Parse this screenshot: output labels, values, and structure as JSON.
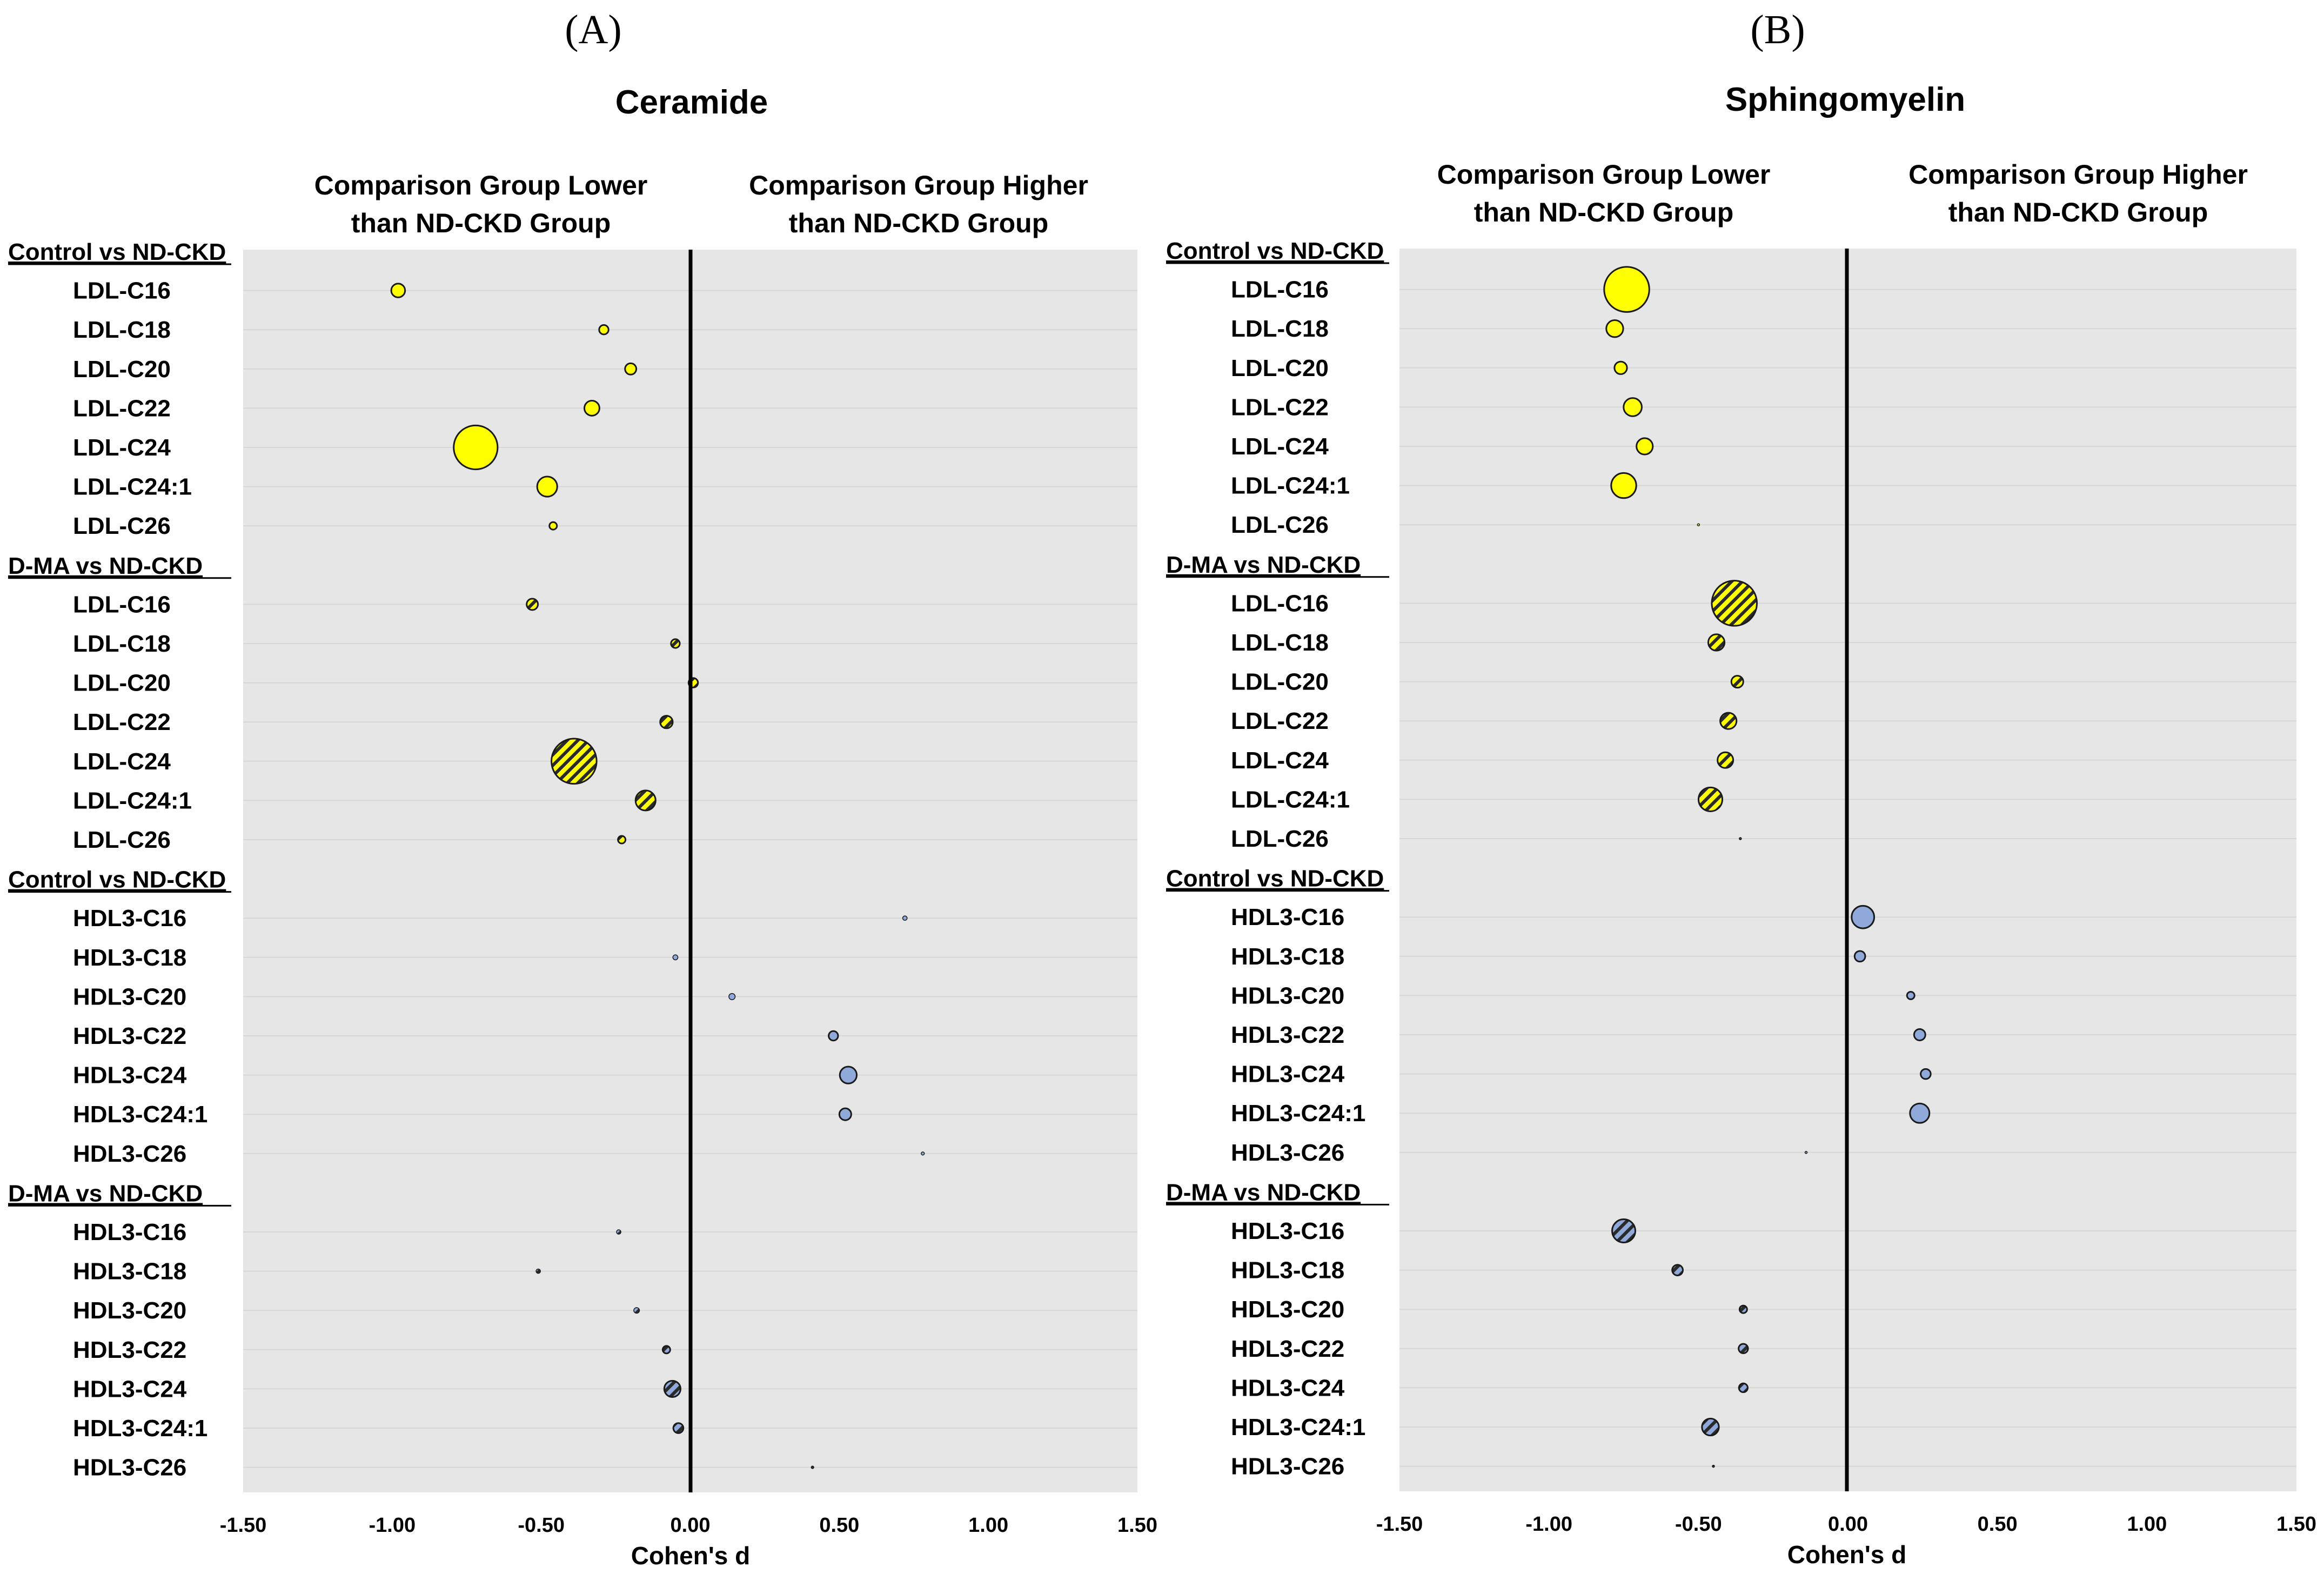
{
  "colors": {
    "plot_background": "#e6e6e6",
    "ldl_fill": "#ffff00",
    "hdl_fill": "#8fa9db",
    "bubble_stroke": "#1a1a1a",
    "zero_line": "#000000"
  },
  "chart_data": [
    {
      "type": "scatter",
      "panel_label": "(A)",
      "title": "Ceramide",
      "left_direction_label": [
        "Comparison Group Lower",
        "than ND-CKD Group"
      ],
      "right_direction_label": [
        "Comparison Group Higher",
        "than ND-CKD Group"
      ],
      "xlabel": "Cohen's d",
      "xlim": [
        -1.5,
        1.5
      ],
      "xticks": [
        "-1.50",
        "-1.00",
        "-0.50",
        "0.00",
        "0.50",
        "1.00",
        "1.50"
      ],
      "groups": [
        {
          "label": "Control vs ND-CKD",
          "fill": "ldl",
          "hatched": false,
          "rows": [
            {
              "label": "LDL-C16",
              "d": -0.98,
              "size": 0.22
            },
            {
              "label": "LDL-C18",
              "d": -0.29,
              "size": 0.15
            },
            {
              "label": "LDL-C20",
              "d": -0.2,
              "size": 0.18
            },
            {
              "label": "LDL-C22",
              "d": -0.33,
              "size": 0.24
            },
            {
              "label": "LDL-C24",
              "d": -0.72,
              "size": 0.7
            },
            {
              "label": "LDL-C24:1",
              "d": -0.48,
              "size": 0.32
            },
            {
              "label": "LDL-C26",
              "d": -0.46,
              "size": 0.12
            }
          ]
        },
        {
          "label": "D-MA vs ND-CKD",
          "fill": "ldl",
          "hatched": true,
          "rows": [
            {
              "label": "LDL-C16",
              "d": -0.53,
              "size": 0.18
            },
            {
              "label": "LDL-C18",
              "d": -0.05,
              "size": 0.14
            },
            {
              "label": "LDL-C20",
              "d": 0.01,
              "size": 0.15
            },
            {
              "label": "LDL-C22",
              "d": -0.08,
              "size": 0.2
            },
            {
              "label": "LDL-C24",
              "d": -0.39,
              "size": 0.72
            },
            {
              "label": "LDL-C24:1",
              "d": -0.15,
              "size": 0.32
            },
            {
              "label": "LDL-C26",
              "d": -0.23,
              "size": 0.12
            }
          ]
        },
        {
          "label": "Control vs ND-CKD",
          "fill": "hdl",
          "hatched": false,
          "rows": [
            {
              "label": "HDL3-C16",
              "d": 0.72,
              "size": 0.07
            },
            {
              "label": "HDL3-C18",
              "d": -0.05,
              "size": 0.08
            },
            {
              "label": "HDL3-C20",
              "d": 0.14,
              "size": 0.1
            },
            {
              "label": "HDL3-C22",
              "d": 0.48,
              "size": 0.15
            },
            {
              "label": "HDL3-C24",
              "d": 0.53,
              "size": 0.27
            },
            {
              "label": "HDL3-C24:1",
              "d": 0.52,
              "size": 0.19
            },
            {
              "label": "HDL3-C26",
              "d": 0.78,
              "size": 0.05
            }
          ]
        },
        {
          "label": "D-MA vs ND-CKD",
          "fill": "hdl",
          "hatched": true,
          "rows": [
            {
              "label": "HDL3-C16",
              "d": -0.24,
              "size": 0.07
            },
            {
              "label": "HDL3-C18",
              "d": -0.51,
              "size": 0.07
            },
            {
              "label": "HDL3-C20",
              "d": -0.18,
              "size": 0.09
            },
            {
              "label": "HDL3-C22",
              "d": -0.08,
              "size": 0.12
            },
            {
              "label": "HDL3-C24",
              "d": -0.06,
              "size": 0.26
            },
            {
              "label": "HDL3-C24:1",
              "d": -0.04,
              "size": 0.16
            },
            {
              "label": "HDL3-C26",
              "d": 0.41,
              "size": 0.04
            }
          ]
        }
      ]
    },
    {
      "type": "scatter",
      "panel_label": "(B)",
      "title": "Sphingomyelin",
      "left_direction_label": [
        "Comparison Group Lower",
        "than ND-CKD Group"
      ],
      "right_direction_label": [
        "Comparison Group Higher",
        "than ND-CKD Group"
      ],
      "xlabel": "Cohen's d",
      "xlim": [
        -1.5,
        1.5
      ],
      "xticks": [
        "-1.50",
        "-1.00",
        "-0.50",
        "0.00",
        "0.50",
        "1.00",
        "1.50"
      ],
      "groups": [
        {
          "label": "Control vs ND-CKD",
          "fill": "ldl",
          "hatched": false,
          "rows": [
            {
              "label": "LDL-C16",
              "d": -0.74,
              "size": 0.72
            },
            {
              "label": "LDL-C18",
              "d": -0.78,
              "size": 0.27
            },
            {
              "label": "LDL-C20",
              "d": -0.76,
              "size": 0.2
            },
            {
              "label": "LDL-C22",
              "d": -0.72,
              "size": 0.29
            },
            {
              "label": "LDL-C24",
              "d": -0.68,
              "size": 0.26
            },
            {
              "label": "LDL-C24:1",
              "d": -0.75,
              "size": 0.4
            },
            {
              "label": "LDL-C26",
              "d": -0.5,
              "size": 0.02
            }
          ]
        },
        {
          "label": "D-MA vs ND-CKD",
          "fill": "ldl",
          "hatched": true,
          "rows": [
            {
              "label": "LDL-C16",
              "d": -0.38,
              "size": 0.72
            },
            {
              "label": "LDL-C18",
              "d": -0.44,
              "size": 0.26
            },
            {
              "label": "LDL-C20",
              "d": -0.37,
              "size": 0.19
            },
            {
              "label": "LDL-C22",
              "d": -0.4,
              "size": 0.26
            },
            {
              "label": "LDL-C24",
              "d": -0.41,
              "size": 0.25
            },
            {
              "label": "LDL-C24:1",
              "d": -0.46,
              "size": 0.38
            },
            {
              "label": "LDL-C26",
              "d": -0.36,
              "size": 0.02
            }
          ]
        },
        {
          "label": "Control vs ND-CKD",
          "fill": "hdl",
          "hatched": false,
          "rows": [
            {
              "label": "HDL3-C16",
              "d": 0.05,
              "size": 0.36
            },
            {
              "label": "HDL3-C18",
              "d": 0.04,
              "size": 0.17
            },
            {
              "label": "HDL3-C20",
              "d": 0.21,
              "size": 0.12
            },
            {
              "label": "HDL3-C22",
              "d": 0.24,
              "size": 0.18
            },
            {
              "label": "HDL3-C24",
              "d": 0.26,
              "size": 0.16
            },
            {
              "label": "HDL3-C24:1",
              "d": 0.24,
              "size": 0.31
            },
            {
              "label": "HDL3-C26",
              "d": -0.14,
              "size": 0.02
            }
          ]
        },
        {
          "label": "D-MA vs ND-CKD",
          "fill": "hdl",
          "hatched": true,
          "rows": [
            {
              "label": "HDL3-C16",
              "d": -0.75,
              "size": 0.37
            },
            {
              "label": "HDL3-C18",
              "d": -0.57,
              "size": 0.17
            },
            {
              "label": "HDL3-C20",
              "d": -0.35,
              "size": 0.12
            },
            {
              "label": "HDL3-C22",
              "d": -0.35,
              "size": 0.15
            },
            {
              "label": "HDL3-C24",
              "d": -0.35,
              "size": 0.14
            },
            {
              "label": "HDL3-C24:1",
              "d": -0.46,
              "size": 0.27
            },
            {
              "label": "HDL3-C26",
              "d": -0.45,
              "size": 0.02
            }
          ]
        }
      ]
    }
  ]
}
